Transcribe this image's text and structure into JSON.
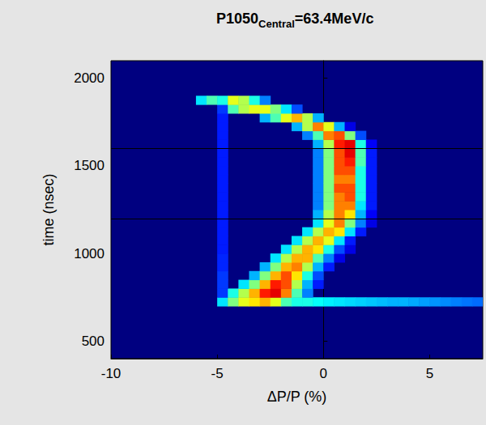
{
  "chart_data": {
    "type": "heatmap",
    "title": "P1050Central=63.4MeV/c",
    "title_subscript": "Central",
    "x_label": "ΔP/P (%)",
    "y_label": "time (nsec)",
    "xlim": [
      -10,
      7.5
    ],
    "ylim": [
      400,
      2100
    ],
    "xticks": [
      -10,
      -5,
      0,
      5
    ],
    "yticks": [
      500,
      1000,
      1500,
      2000
    ],
    "hlines": [
      1200,
      1600
    ],
    "cell_width": 0.5,
    "cell_height": 50,
    "color_range": [
      0,
      1
    ],
    "cells": [
      [
        -5,
        700,
        0.35
      ],
      [
        -4.5,
        700,
        0.5
      ],
      [
        -4,
        700,
        0.6
      ],
      [
        -3.5,
        700,
        0.65
      ],
      [
        -3,
        700,
        0.7
      ],
      [
        -2.5,
        700,
        0.6
      ],
      [
        -2,
        700,
        0.45
      ],
      [
        -1.5,
        700,
        0.4
      ],
      [
        -1,
        700,
        0.4
      ],
      [
        -0.5,
        700,
        0.38
      ],
      [
        0,
        700,
        0.36
      ],
      [
        0.5,
        700,
        0.35
      ],
      [
        1,
        700,
        0.34
      ],
      [
        1.5,
        700,
        0.33
      ],
      [
        2,
        700,
        0.32
      ],
      [
        2.5,
        700,
        0.31
      ],
      [
        3,
        700,
        0.3
      ],
      [
        3.5,
        700,
        0.3
      ],
      [
        4,
        700,
        0.29
      ],
      [
        4.5,
        700,
        0.28
      ],
      [
        5,
        700,
        0.27
      ],
      [
        5.5,
        700,
        0.26
      ],
      [
        6,
        700,
        0.25
      ],
      [
        6.5,
        700,
        0.24
      ],
      [
        7,
        700,
        0.23
      ],
      [
        -5,
        750,
        0.18
      ],
      [
        -4.5,
        750,
        0.4
      ],
      [
        -4,
        750,
        0.55
      ],
      [
        -3.5,
        750,
        0.7
      ],
      [
        -3,
        750,
        0.85
      ],
      [
        -2.5,
        750,
        0.9
      ],
      [
        -2,
        750,
        0.75
      ],
      [
        -1.5,
        750,
        0.45
      ],
      [
        -1,
        750,
        0.25
      ],
      [
        -5,
        800,
        0.18
      ],
      [
        -4,
        800,
        0.35
      ],
      [
        -3.5,
        800,
        0.5
      ],
      [
        -3,
        800,
        0.7
      ],
      [
        -2.5,
        800,
        0.85
      ],
      [
        -2,
        800,
        0.8
      ],
      [
        -1.5,
        800,
        0.55
      ],
      [
        -1,
        800,
        0.3
      ],
      [
        -0.5,
        800,
        0.15
      ],
      [
        -5,
        850,
        0.18
      ],
      [
        -3.5,
        850,
        0.3
      ],
      [
        -3,
        850,
        0.5
      ],
      [
        -2.5,
        850,
        0.7
      ],
      [
        -2,
        850,
        0.8
      ],
      [
        -1.5,
        850,
        0.65
      ],
      [
        -1,
        850,
        0.4
      ],
      [
        -0.5,
        850,
        0.2
      ],
      [
        -5,
        900,
        0.16
      ],
      [
        -3,
        900,
        0.3
      ],
      [
        -2.5,
        900,
        0.5
      ],
      [
        -2,
        900,
        0.7
      ],
      [
        -1.5,
        900,
        0.75
      ],
      [
        -1,
        900,
        0.55
      ],
      [
        -0.5,
        900,
        0.3
      ],
      [
        0,
        900,
        0.15
      ],
      [
        -5,
        950,
        0.16
      ],
      [
        -2.5,
        950,
        0.35
      ],
      [
        -2,
        950,
        0.55
      ],
      [
        -1.5,
        950,
        0.7
      ],
      [
        -1,
        950,
        0.7
      ],
      [
        -0.5,
        950,
        0.45
      ],
      [
        0,
        950,
        0.25
      ],
      [
        0.5,
        950,
        0.1
      ],
      [
        -5,
        1000,
        0.15
      ],
      [
        -2,
        1000,
        0.35
      ],
      [
        -1.5,
        1000,
        0.55
      ],
      [
        -1,
        1000,
        0.7
      ],
      [
        -0.5,
        1000,
        0.65
      ],
      [
        0,
        1000,
        0.4
      ],
      [
        0.5,
        1000,
        0.2
      ],
      [
        1,
        1000,
        0.1
      ],
      [
        -5,
        1050,
        0.15
      ],
      [
        -1.5,
        1050,
        0.35
      ],
      [
        -1,
        1050,
        0.55
      ],
      [
        -0.5,
        1050,
        0.7
      ],
      [
        0,
        1050,
        0.6
      ],
      [
        0.5,
        1050,
        0.35
      ],
      [
        1,
        1050,
        0.15
      ],
      [
        -5,
        1100,
        0.15
      ],
      [
        -1,
        1100,
        0.35
      ],
      [
        -0.5,
        1100,
        0.55
      ],
      [
        0,
        1100,
        0.7
      ],
      [
        0.5,
        1100,
        0.65
      ],
      [
        1,
        1100,
        0.35
      ],
      [
        1.5,
        1100,
        0.15
      ],
      [
        -5,
        1150,
        0.15
      ],
      [
        -0.5,
        1150,
        0.35
      ],
      [
        0,
        1150,
        0.6
      ],
      [
        0.5,
        1150,
        0.75
      ],
      [
        1,
        1150,
        0.5
      ],
      [
        1.5,
        1150,
        0.25
      ],
      [
        2,
        1150,
        0.1
      ],
      [
        -5,
        1200,
        0.15
      ],
      [
        -0.5,
        1200,
        0.3
      ],
      [
        0,
        1200,
        0.55
      ],
      [
        0.5,
        1200,
        0.75
      ],
      [
        1,
        1200,
        0.65
      ],
      [
        1.5,
        1200,
        0.3
      ],
      [
        2,
        1200,
        0.12
      ],
      [
        -5,
        1250,
        0.15
      ],
      [
        -0.5,
        1250,
        0.25
      ],
      [
        0,
        1250,
        0.5
      ],
      [
        0.5,
        1250,
        0.75
      ],
      [
        1,
        1250,
        0.75
      ],
      [
        1.5,
        1250,
        0.35
      ],
      [
        2,
        1250,
        0.15
      ],
      [
        -5,
        1300,
        0.15
      ],
      [
        -0.5,
        1300,
        0.25
      ],
      [
        0,
        1300,
        0.5
      ],
      [
        0.5,
        1300,
        0.75
      ],
      [
        1,
        1300,
        0.8
      ],
      [
        1.5,
        1300,
        0.4
      ],
      [
        2,
        1300,
        0.15
      ],
      [
        -5,
        1350,
        0.15
      ],
      [
        -0.5,
        1350,
        0.25
      ],
      [
        0,
        1350,
        0.5
      ],
      [
        0.5,
        1350,
        0.8
      ],
      [
        1,
        1350,
        0.8
      ],
      [
        1.5,
        1350,
        0.4
      ],
      [
        2,
        1350,
        0.15
      ],
      [
        -5,
        1400,
        0.15
      ],
      [
        -0.5,
        1400,
        0.25
      ],
      [
        0,
        1400,
        0.5
      ],
      [
        0.5,
        1400,
        0.75
      ],
      [
        1,
        1400,
        0.75
      ],
      [
        1.5,
        1400,
        0.4
      ],
      [
        2,
        1400,
        0.15
      ],
      [
        -5,
        1450,
        0.15
      ],
      [
        -0.5,
        1450,
        0.25
      ],
      [
        0,
        1450,
        0.5
      ],
      [
        0.5,
        1450,
        0.8
      ],
      [
        1,
        1450,
        0.8
      ],
      [
        1.5,
        1450,
        0.4
      ],
      [
        2,
        1450,
        0.15
      ],
      [
        -5,
        1500,
        0.15
      ],
      [
        -0.5,
        1500,
        0.25
      ],
      [
        0,
        1500,
        0.5
      ],
      [
        0.5,
        1500,
        0.8
      ],
      [
        1,
        1500,
        0.85
      ],
      [
        1.5,
        1500,
        0.45
      ],
      [
        2,
        1500,
        0.15
      ],
      [
        -5,
        1550,
        0.15
      ],
      [
        -0.5,
        1550,
        0.25
      ],
      [
        0,
        1550,
        0.5
      ],
      [
        0.5,
        1550,
        0.8
      ],
      [
        1,
        1550,
        0.9
      ],
      [
        1.5,
        1550,
        0.45
      ],
      [
        2,
        1550,
        0.15
      ],
      [
        -5,
        1600,
        0.15
      ],
      [
        -0.5,
        1600,
        0.3
      ],
      [
        0,
        1600,
        0.55
      ],
      [
        0.5,
        1600,
        0.85
      ],
      [
        1,
        1600,
        0.9
      ],
      [
        1.5,
        1600,
        0.4
      ],
      [
        2,
        1600,
        0.12
      ],
      [
        -5,
        1650,
        0.15
      ],
      [
        -1,
        1650,
        0.25
      ],
      [
        -0.5,
        1650,
        0.45
      ],
      [
        0,
        1650,
        0.75
      ],
      [
        0.5,
        1650,
        0.8
      ],
      [
        1,
        1650,
        0.5
      ],
      [
        1.5,
        1650,
        0.2
      ],
      [
        -5,
        1700,
        0.15
      ],
      [
        -1.5,
        1700,
        0.3
      ],
      [
        -1,
        1700,
        0.55
      ],
      [
        -0.5,
        1700,
        0.75
      ],
      [
        0,
        1700,
        0.6
      ],
      [
        0.5,
        1700,
        0.3
      ],
      [
        1,
        1700,
        0.1
      ],
      [
        -5,
        1750,
        0.15
      ],
      [
        -3,
        1750,
        0.3
      ],
      [
        -2.5,
        1750,
        0.45
      ],
      [
        -2,
        1750,
        0.6
      ],
      [
        -1.5,
        1750,
        0.7
      ],
      [
        -1,
        1750,
        0.55
      ],
      [
        -0.5,
        1750,
        0.3
      ],
      [
        -5,
        1800,
        0.18
      ],
      [
        -4.5,
        1800,
        0.45
      ],
      [
        -4,
        1800,
        0.55
      ],
      [
        -3.5,
        1800,
        0.6
      ],
      [
        -3,
        1800,
        0.6
      ],
      [
        -2.5,
        1800,
        0.5
      ],
      [
        -2,
        1800,
        0.35
      ],
      [
        -1.5,
        1800,
        0.2
      ],
      [
        -6,
        1850,
        0.35
      ],
      [
        -5.5,
        1850,
        0.45
      ],
      [
        -5,
        1850,
        0.4
      ],
      [
        -4.5,
        1850,
        0.6
      ],
      [
        -4,
        1850,
        0.55
      ],
      [
        -3.5,
        1850,
        0.4
      ],
      [
        -3,
        1850,
        0.25
      ]
    ]
  }
}
